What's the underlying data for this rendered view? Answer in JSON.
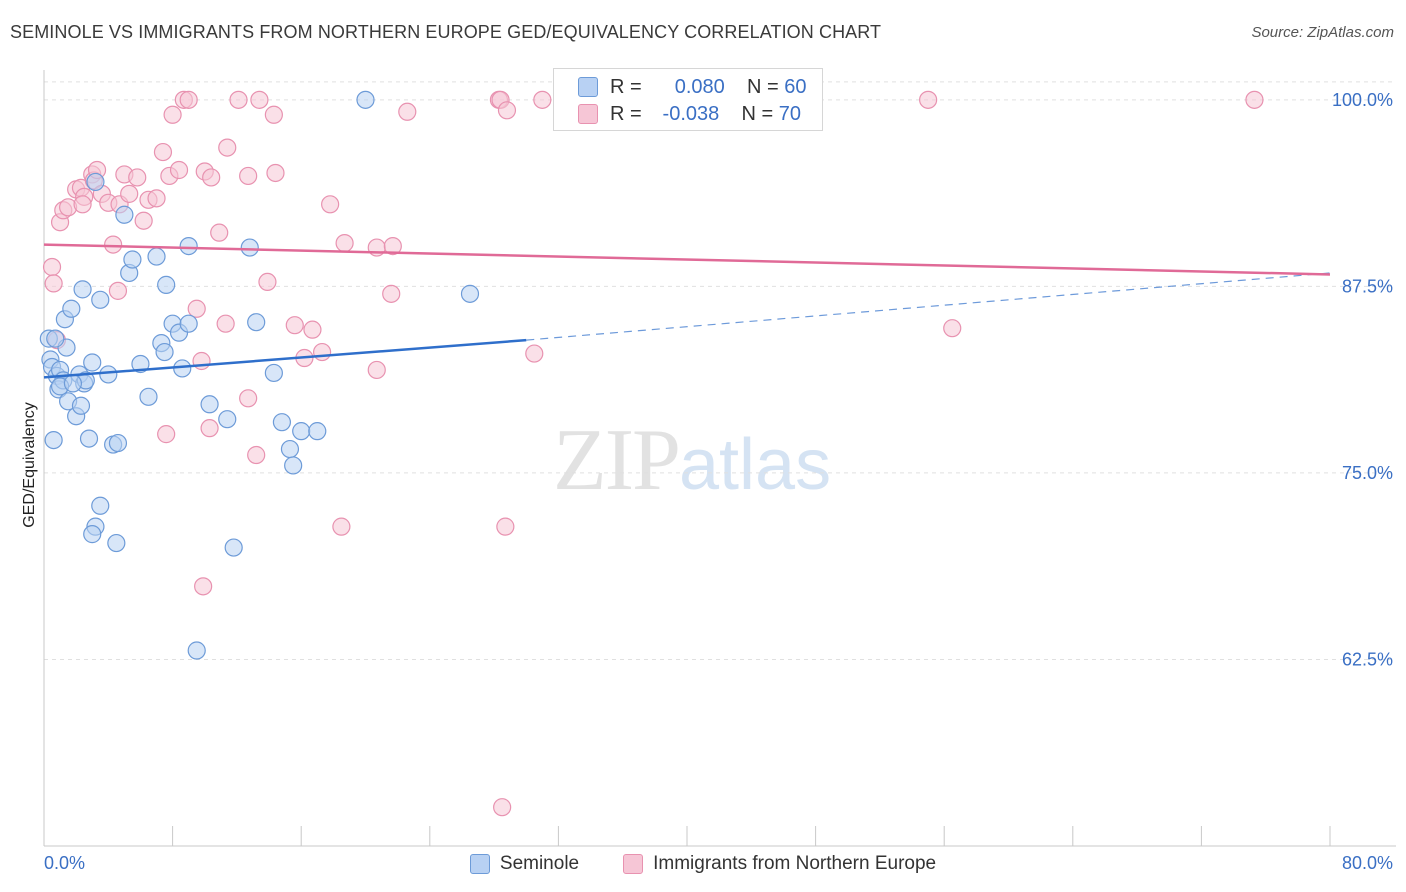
{
  "header": {
    "title": "SEMINOLE VS IMMIGRANTS FROM NORTHERN EUROPE GED/EQUIVALENCY CORRELATION CHART",
    "source": "Source: ZipAtlas.com"
  },
  "watermark": {
    "zip": "ZIP",
    "atlas": "atlas"
  },
  "colors": {
    "seminole_fill": "#b8d1f3",
    "seminole_stroke": "#6d9bd8",
    "seminole_line": "#2f6fcb",
    "immigrants_fill": "#f6c6d6",
    "immigrants_stroke": "#e892b0",
    "immigrants_line": "#e06a97",
    "tick_label": "#3a6fc4",
    "grid": "#e0e0e0"
  },
  "stats_legend": {
    "rows": [
      {
        "r_label": "R =",
        "r_value": "0.080",
        "n_label": "N =",
        "n_value": "60"
      },
      {
        "r_label": "R =",
        "r_value": "-0.038",
        "n_label": "N =",
        "n_value": "70"
      }
    ]
  },
  "chart_data": {
    "type": "scatter",
    "title": "SEMINOLE VS IMMIGRANTS FROM NORTHERN EUROPE GED/EQUIVALENCY CORRELATION CHART",
    "xlabel": "",
    "ylabel": "GED/Equivalency",
    "xlim": [
      0,
      80
    ],
    "ylim": [
      50,
      102
    ],
    "x_tick_labels": [
      "0.0%",
      "80.0%"
    ],
    "y_ticks": [
      62.5,
      75.0,
      87.5,
      100.0
    ],
    "y_tick_labels": [
      "62.5%",
      "75.0%",
      "87.5%",
      "100.0%"
    ],
    "grid": "horizontal dashed",
    "legend_position": "bottom",
    "series": [
      {
        "name": "Seminole",
        "r": 0.08,
        "n": 60,
        "trend": {
          "x0": 0,
          "y0": 81.4,
          "x1": 30,
          "y1": 83.9,
          "dashed_to_x": 80,
          "dashed_to_y": 88.4
        },
        "points": [
          [
            0.3,
            84.0
          ],
          [
            0.4,
            82.6
          ],
          [
            0.5,
            82.1
          ],
          [
            0.6,
            77.2
          ],
          [
            0.8,
            81.5
          ],
          [
            0.9,
            80.6
          ],
          [
            1.0,
            81.9
          ],
          [
            1.2,
            81.2
          ],
          [
            1.3,
            85.3
          ],
          [
            1.4,
            83.4
          ],
          [
            1.5,
            79.8
          ],
          [
            1.7,
            86.0
          ],
          [
            2.0,
            78.8
          ],
          [
            2.2,
            81.6
          ],
          [
            2.3,
            79.5
          ],
          [
            2.4,
            87.3
          ],
          [
            2.5,
            81.0
          ],
          [
            2.8,
            77.3
          ],
          [
            3.0,
            82.4
          ],
          [
            3.2,
            94.5
          ],
          [
            3.5,
            86.6
          ],
          [
            4.0,
            81.6
          ],
          [
            4.3,
            76.9
          ],
          [
            4.6,
            77.0
          ],
          [
            5.0,
            92.3
          ],
          [
            5.3,
            88.4
          ],
          [
            5.5,
            89.3
          ],
          [
            6.0,
            82.3
          ],
          [
            6.5,
            80.1
          ],
          [
            7.0,
            89.5
          ],
          [
            7.3,
            83.7
          ],
          [
            7.5,
            83.1
          ],
          [
            7.6,
            87.6
          ],
          [
            8.0,
            85.0
          ],
          [
            8.4,
            84.4
          ],
          [
            8.6,
            82.0
          ],
          [
            9.0,
            85.0
          ],
          [
            9.0,
            90.2
          ],
          [
            10.3,
            79.6
          ],
          [
            11.4,
            78.6
          ],
          [
            11.8,
            70.0
          ],
          [
            12.8,
            90.1
          ],
          [
            13.2,
            85.1
          ],
          [
            14.3,
            81.7
          ],
          [
            14.8,
            78.4
          ],
          [
            15.3,
            76.6
          ],
          [
            16.0,
            77.8
          ],
          [
            3.5,
            72.8
          ],
          [
            3.2,
            71.4
          ],
          [
            3.0,
            70.9
          ],
          [
            4.5,
            70.3
          ],
          [
            9.5,
            63.1
          ],
          [
            20.0,
            100.0
          ],
          [
            26.5,
            87.0
          ],
          [
            15.5,
            75.5
          ],
          [
            17.0,
            77.8
          ],
          [
            1.0,
            80.8
          ],
          [
            2.6,
            81.2
          ],
          [
            0.7,
            84.0
          ],
          [
            1.8,
            81.0
          ]
        ]
      },
      {
        "name": "Immigrants from Northern Europe",
        "r": -0.038,
        "n": 70,
        "trend": {
          "x0": 0,
          "y0": 90.3,
          "x1": 80,
          "y1": 88.3
        },
        "points": [
          [
            0.5,
            88.8
          ],
          [
            0.6,
            87.7
          ],
          [
            0.8,
            83.9
          ],
          [
            1.0,
            91.8
          ],
          [
            1.2,
            92.6
          ],
          [
            1.5,
            92.8
          ],
          [
            2.0,
            94.0
          ],
          [
            2.3,
            94.1
          ],
          [
            2.5,
            93.5
          ],
          [
            3.0,
            95.0
          ],
          [
            3.1,
            94.6
          ],
          [
            3.3,
            95.3
          ],
          [
            3.6,
            93.7
          ],
          [
            4.0,
            93.1
          ],
          [
            4.3,
            90.3
          ],
          [
            4.7,
            93.0
          ],
          [
            5.0,
            95.0
          ],
          [
            5.3,
            93.7
          ],
          [
            5.8,
            94.8
          ],
          [
            6.2,
            91.9
          ],
          [
            6.5,
            93.3
          ],
          [
            7.0,
            93.4
          ],
          [
            7.4,
            96.5
          ],
          [
            7.8,
            94.9
          ],
          [
            8.0,
            99.0
          ],
          [
            8.4,
            95.3
          ],
          [
            8.7,
            100.0
          ],
          [
            9.0,
            100.0
          ],
          [
            9.5,
            86.0
          ],
          [
            10.0,
            95.2
          ],
          [
            10.4,
            94.8
          ],
          [
            10.9,
            91.1
          ],
          [
            11.4,
            96.8
          ],
          [
            12.1,
            100.0
          ],
          [
            12.7,
            94.9
          ],
          [
            13.4,
            100.0
          ],
          [
            14.4,
            95.1
          ],
          [
            14.3,
            99.0
          ],
          [
            15.6,
            84.9
          ],
          [
            16.7,
            84.6
          ],
          [
            17.3,
            83.1
          ],
          [
            17.8,
            93.0
          ],
          [
            18.7,
            90.4
          ],
          [
            20.7,
            90.1
          ],
          [
            21.7,
            90.2
          ],
          [
            21.6,
            87.0
          ],
          [
            22.6,
            99.2
          ],
          [
            28.3,
            100.0
          ],
          [
            28.4,
            100.0
          ],
          [
            28.8,
            99.3
          ],
          [
            30.5,
            83.0
          ],
          [
            31.0,
            100.0
          ],
          [
            55.0,
            100.0
          ],
          [
            56.5,
            84.7
          ],
          [
            75.3,
            100.0
          ],
          [
            13.9,
            87.8
          ],
          [
            11.3,
            85.0
          ],
          [
            10.3,
            78.0
          ],
          [
            12.7,
            80.0
          ],
          [
            7.6,
            77.6
          ],
          [
            9.8,
            82.5
          ],
          [
            13.2,
            76.2
          ],
          [
            16.2,
            82.7
          ],
          [
            20.7,
            81.9
          ],
          [
            18.5,
            71.4
          ],
          [
            28.7,
            71.4
          ],
          [
            9.9,
            67.4
          ],
          [
            28.5,
            52.6
          ],
          [
            4.6,
            87.2
          ],
          [
            2.4,
            93.0
          ]
        ]
      }
    ]
  },
  "bottom_legend": {
    "items": [
      {
        "label": "Seminole"
      },
      {
        "label": "Immigrants from Northern Europe"
      }
    ]
  }
}
